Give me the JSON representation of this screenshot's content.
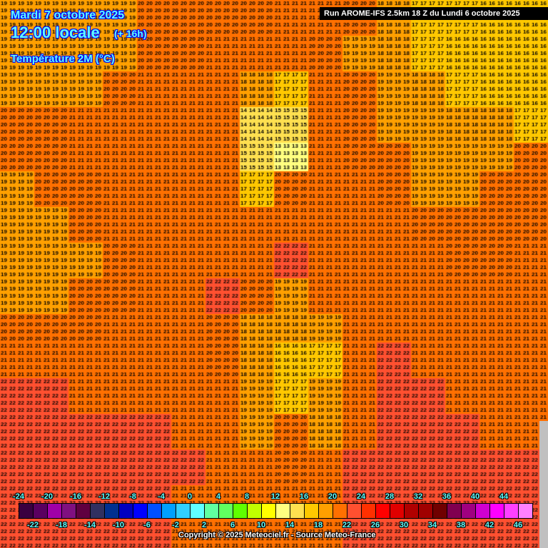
{
  "header": {
    "date": "Mardi 7 octobre 2025",
    "time": "12:00 locale",
    "lead": "(+ 16h)",
    "variable": "Température 2M (°C)",
    "run": "Run AROME-IFS 2.5km 18 Z du Lundi 6 octobre 2025"
  },
  "footer": {
    "copyright": "Copyright © 2025 Meteociel.fr - Source Meteo-France"
  },
  "legend": {
    "top_labels": [
      "-24",
      "-20",
      "-16",
      "-12",
      "-8",
      "-4",
      "0",
      "4",
      "8",
      "12",
      "16",
      "20",
      "24",
      "28",
      "32",
      "36",
      "40",
      "44"
    ],
    "bottom_labels": [
      "-22",
      "-18",
      "-14",
      "-10",
      "-6",
      "-2",
      "2",
      "6",
      "10",
      "14",
      "18",
      "22",
      "26",
      "30",
      "34",
      "38",
      "42",
      "46"
    ],
    "colors": [
      "#3a0040",
      "#5a0060",
      "#a000a8",
      "#801080",
      "#600040",
      "#303060",
      "#003090",
      "#0000c0",
      "#0000ff",
      "#0050ff",
      "#00a0ff",
      "#30d0ff",
      "#60ffff",
      "#60ffa0",
      "#60ff60",
      "#60ff00",
      "#c0ff00",
      "#ffff00",
      "#ffff80",
      "#ffe050",
      "#ffc800",
      "#ffa000",
      "#ff7000",
      "#ff5030",
      "#ff3000",
      "#ff0000",
      "#e00000",
      "#b00000",
      "#a00000",
      "#700000",
      "#800050",
      "#a00080",
      "#d000d0",
      "#ff00ff",
      "#ff40ff",
      "#ff80ff"
    ],
    "min": -24,
    "step": 2
  },
  "temperature_grid_coarse": [
    [
      19,
      19,
      19,
      19,
      20,
      20,
      20,
      20,
      21,
      21,
      20,
      18,
      17,
      17,
      16,
      16
    ],
    [
      19,
      19,
      19,
      19,
      20,
      20,
      21,
      21,
      21,
      20,
      19,
      18,
      17,
      16,
      16,
      16
    ],
    [
      19,
      19,
      19,
      20,
      21,
      21,
      21,
      18,
      17,
      21,
      20,
      19,
      18,
      17,
      16,
      16
    ],
    [
      20,
      20,
      21,
      21,
      21,
      21,
      21,
      14,
      15,
      21,
      20,
      19,
      19,
      18,
      18,
      17
    ],
    [
      20,
      20,
      21,
      21,
      21,
      21,
      21,
      15,
      13,
      21,
      20,
      20,
      19,
      19,
      19,
      20
    ],
    [
      19,
      20,
      20,
      21,
      21,
      21,
      21,
      17,
      20,
      21,
      21,
      20,
      19,
      19,
      20,
      20
    ],
    [
      19,
      19,
      20,
      21,
      21,
      21,
      21,
      21,
      21,
      21,
      21,
      21,
      20,
      20,
      20,
      20
    ],
    [
      19,
      19,
      19,
      20,
      21,
      21,
      21,
      21,
      22,
      21,
      21,
      21,
      21,
      20,
      20,
      21
    ],
    [
      19,
      19,
      20,
      20,
      21,
      21,
      22,
      20,
      19,
      21,
      21,
      21,
      21,
      21,
      21,
      21
    ],
    [
      20,
      20,
      20,
      21,
      21,
      21,
      20,
      18,
      18,
      19,
      21,
      21,
      21,
      21,
      21,
      21
    ],
    [
      21,
      21,
      21,
      21,
      21,
      21,
      20,
      18,
      16,
      17,
      21,
      22,
      21,
      21,
      21,
      21
    ],
    [
      22,
      22,
      21,
      21,
      21,
      21,
      21,
      19,
      17,
      19,
      21,
      22,
      22,
      21,
      21,
      21
    ],
    [
      22,
      22,
      22,
      22,
      22,
      21,
      21,
      19,
      20,
      18,
      21,
      22,
      22,
      22,
      21,
      21
    ],
    [
      22,
      22,
      22,
      22,
      22,
      22,
      21,
      21,
      20,
      21,
      22,
      22,
      22,
      22,
      22,
      22
    ],
    [
      22,
      22,
      22,
      22,
      22,
      21,
      21,
      21,
      21,
      21,
      22,
      22,
      22,
      22,
      22,
      22
    ],
    [
      22,
      22,
      22,
      22,
      22,
      21,
      21,
      21,
      21,
      21,
      22,
      22,
      22,
      22,
      22,
      22
    ]
  ]
}
